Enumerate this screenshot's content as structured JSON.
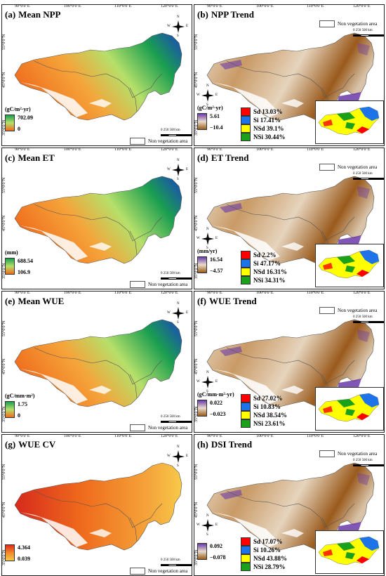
{
  "degrees": {
    "top": [
      "90°0'0\"E",
      "100°0'0\"E",
      "110°0'0\"E",
      "120°0'0\"E"
    ],
    "side": [
      "55°0'0\"N",
      "45°0'0\"N",
      "35°0'0\"N"
    ]
  },
  "compass": {
    "n": "N",
    "s": "S",
    "e": "E",
    "w": "W"
  },
  "scale": {
    "text": "0   250  500",
    "unit": "km"
  },
  "non_veg_label": "Non vegetation area",
  "colors": {
    "mean_high": "#1a9e50",
    "mean_mid": "#b5e06a",
    "mean_low": "#ef6a1c",
    "trend_pos": "#6b3aa8",
    "trend_neg": "#9a5a1c",
    "sd": "#ff0000",
    "si": "#1e73e8",
    "nsd": "#ffff00",
    "nsi": "#1aa01a"
  },
  "panels": [
    {
      "label": "(a)",
      "title": "Mean NPP",
      "type": "mean",
      "unit": "(gC/m²·yr)",
      "max": "702.09",
      "min": "0"
    },
    {
      "label": "(b)",
      "title": "NPP Trend",
      "type": "trend",
      "unit": "(gC/m²·yr)",
      "max": "5.61",
      "min": "−10.4",
      "stats": [
        {
          "name": "Sd",
          "value": "13.03%"
        },
        {
          "name": "Si",
          "value": "17.41%"
        },
        {
          "name": "NSd",
          "value": "39.1%"
        },
        {
          "name": "NSi",
          "value": "30.44%"
        }
      ]
    },
    {
      "label": "(c)",
      "title": "Mean ET",
      "type": "mean",
      "unit": "(mm)",
      "max": "688.54",
      "min": "106.9"
    },
    {
      "label": "(d)",
      "title": "ET Trend",
      "type": "trend",
      "unit": "(mm/yr)",
      "max": "16.54",
      "min": "−4.57",
      "stats": [
        {
          "name": "Sd",
          "value": "2.2%"
        },
        {
          "name": "Si",
          "value": "47.17%"
        },
        {
          "name": "NSd",
          "value": "16.31%"
        },
        {
          "name": "NSi",
          "value": "34.31%"
        }
      ]
    },
    {
      "label": "(e)",
      "title": "Mean WUE",
      "type": "mean",
      "unit": "(gC/mm·m²)",
      "max": "1.75",
      "min": "0"
    },
    {
      "label": "(f)",
      "title": "WUE Trend",
      "type": "trend",
      "unit": "(gC/mm·m²·yr)",
      "max": "0.022",
      "min": "−0.023",
      "stats": [
        {
          "name": "Sd",
          "value": "27.02%"
        },
        {
          "name": "Si",
          "value": "10.83%"
        },
        {
          "name": "NSd",
          "value": "38.54%"
        },
        {
          "name": "NSi",
          "value": "23.61%"
        }
      ]
    },
    {
      "label": "(g)",
      "title": "WUE CV",
      "type": "cv",
      "unit": "",
      "max": "4.364",
      "min": "0.039"
    },
    {
      "label": "(h)",
      "title": "DSI Trend",
      "type": "trend",
      "unit": "",
      "max": "0.092",
      "min": "−0.078",
      "stats": [
        {
          "name": "Sd",
          "value": "17.07%"
        },
        {
          "name": "Si",
          "value": "10.26%"
        },
        {
          "name": "NSd",
          "value": "43.88%"
        },
        {
          "name": "NSi",
          "value": "28.79%"
        }
      ]
    }
  ]
}
